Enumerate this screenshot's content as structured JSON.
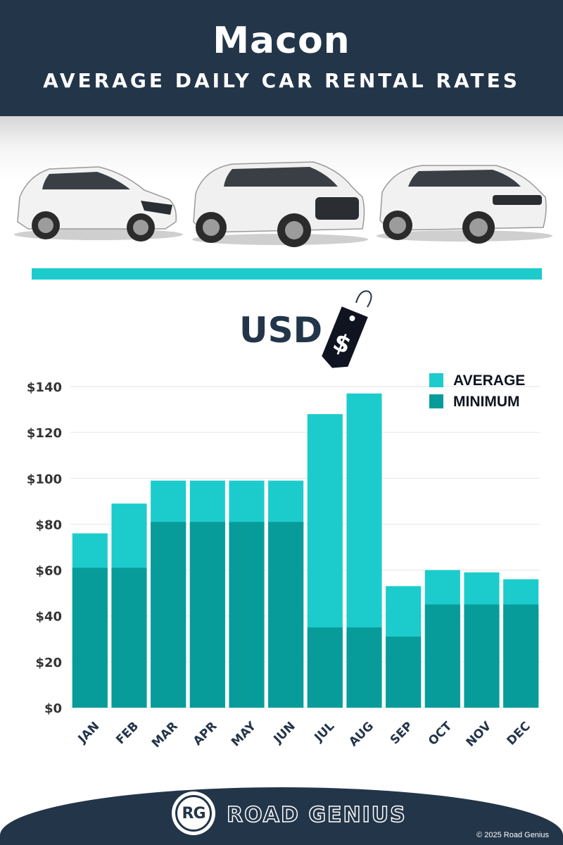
{
  "header": {
    "city": "Macon",
    "subtitle": "AVERAGE DAILY CAR RENTAL RATES"
  },
  "hero": {
    "images": [
      "hatchback-car-image",
      "suv-car-image",
      "luxury-suv-car-image"
    ]
  },
  "currency_label": "USD",
  "price_tag_symbol": "$",
  "colors": {
    "navy": "#233549",
    "average": "#1ccccc",
    "minimum": "#079c9a",
    "accent": "#1ccccc"
  },
  "chart_data": {
    "type": "bar",
    "categories": [
      "JAN",
      "FEB",
      "MAR",
      "APR",
      "MAY",
      "JUN",
      "JUL",
      "AUG",
      "SEP",
      "OCT",
      "NOV",
      "DEC"
    ],
    "series": [
      {
        "name": "AVERAGE",
        "values": [
          76,
          89,
          99,
          99,
          99,
          99,
          128,
          137,
          53,
          60,
          59,
          56
        ]
      },
      {
        "name": "MINIMUM",
        "values": [
          61,
          61,
          81,
          81,
          81,
          81,
          35,
          35,
          31,
          45,
          45,
          45
        ]
      }
    ],
    "yticks": [
      "$0",
      "$20",
      "$40",
      "$60",
      "$80",
      "$100",
      "$120",
      "$140"
    ],
    "ylim": [
      0,
      140
    ],
    "grid": true,
    "legend_position": "top-right"
  },
  "footer": {
    "logo_text": "RG",
    "brand": "ROAD GENIUS",
    "copyright": "© 2025 Road Genius"
  }
}
